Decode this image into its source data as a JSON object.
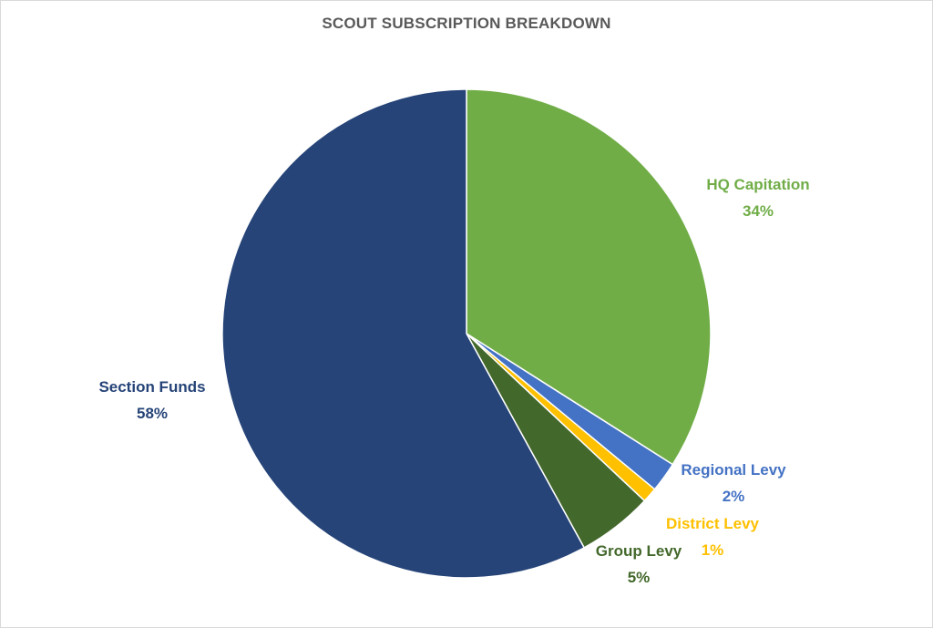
{
  "chart_data": {
    "type": "pie",
    "title": "SCOUT SUBSCRIPTION BREAKDOWN",
    "slices": [
      {
        "name": "HQ Capitation",
        "value": 34,
        "label": "34%",
        "color": "#70ad47",
        "label_color": "#70ad47"
      },
      {
        "name": "Regional Levy",
        "value": 2,
        "label": "2%",
        "color": "#4472c4",
        "label_color": "#4472c4"
      },
      {
        "name": "District Levy",
        "value": 1,
        "label": "1%",
        "color": "#ffc000",
        "label_color": "#ffc000"
      },
      {
        "name": "Group Levy",
        "value": 5,
        "label": "5%",
        "color": "#43682b",
        "label_color": "#43682b"
      },
      {
        "name": "Section Funds",
        "value": 58,
        "label": "58%",
        "color": "#264478",
        "label_color": "#264478"
      }
    ],
    "start_angle": "12 o'clock",
    "direction": "clockwise",
    "legend": "none"
  }
}
